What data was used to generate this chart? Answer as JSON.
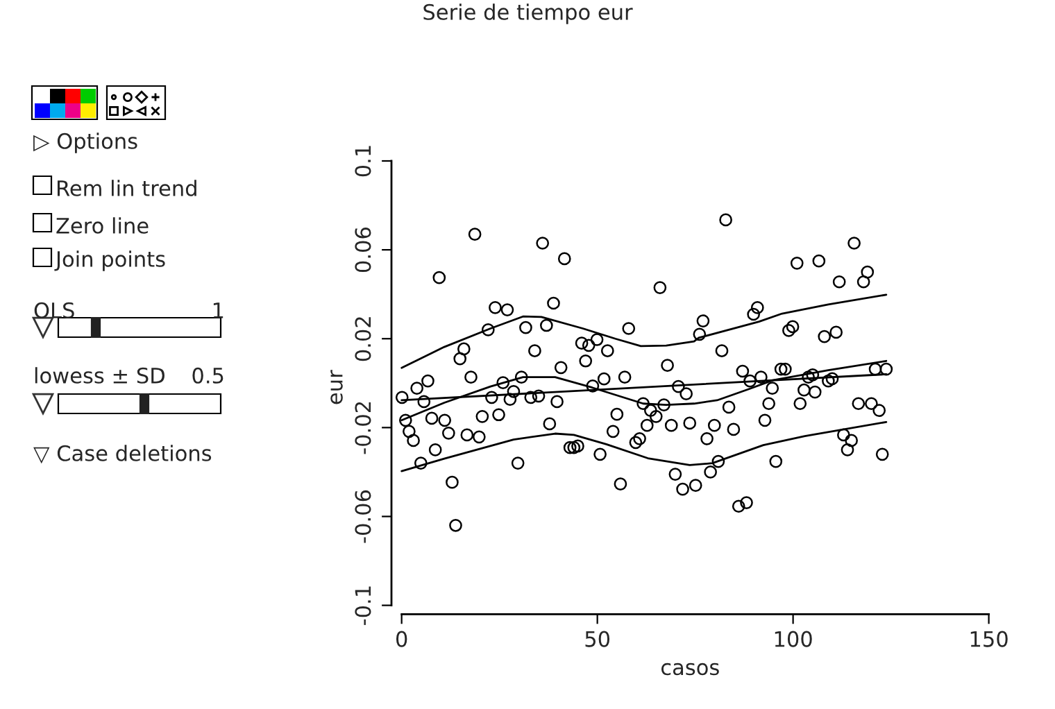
{
  "chart_data": {
    "type": "scatter",
    "title": "Serie de tiempo eur",
    "xlabel": "casos",
    "ylabel": "eur",
    "xlim": [
      -2.6,
      150
    ],
    "ylim": [
      -0.104,
      0.1
    ],
    "xticks": [
      0,
      50,
      100,
      150
    ],
    "yticks": [
      -0.1,
      -0.06,
      -0.02,
      0.02,
      0.06,
      0.1
    ],
    "grid": false,
    "annotations": [
      "▷ Options",
      "Rem lin trend",
      "Zero line",
      "Join points",
      "OLS",
      "1",
      "lowess ± SD",
      "0.5",
      "▽ Case deletions"
    ],
    "series": [
      {
        "marker": "circle",
        "color": "#000000",
        "x": [
          0.1,
          1,
          1.9,
          3,
          3.9,
          4.9,
          5.7,
          6.7,
          7.7,
          8.6,
          9.6,
          11,
          12,
          12.9,
          13.8,
          14.9,
          15.9,
          16.7,
          17.7,
          18.7,
          19.8,
          20.6,
          22.1,
          23,
          23.9,
          24.8,
          25.9,
          27,
          27.7,
          28.6,
          29.7,
          30.6,
          31.7,
          33,
          34,
          35,
          36,
          37,
          37.8,
          38.8,
          39.7,
          40.7,
          41.6,
          43,
          44,
          45,
          46,
          47,
          47.8,
          48.8,
          49.9,
          50.7,
          51.7,
          52.6,
          54,
          55,
          55.9,
          57,
          58,
          59.8,
          60.8,
          61.7,
          62.7,
          63.6,
          65,
          66,
          67,
          67.9,
          68.9,
          69.9,
          70.7,
          71.8,
          72.7,
          73.6,
          75.1,
          76.1,
          77,
          78,
          78.9,
          79.9,
          80.9,
          81.8,
          82.8,
          83.6,
          84.8,
          86.1,
          87.1,
          88.1,
          89,
          89.9,
          90.9,
          91.8,
          92.8,
          93.8,
          94.7,
          95.6,
          96.9,
          98,
          98.9,
          99.9,
          101,
          101.8,
          102.8,
          103.9,
          105,
          105.6,
          106.6,
          108,
          109,
          110,
          111,
          111.8,
          112.9,
          113.9,
          114.9,
          115.6,
          116.7,
          118,
          119,
          120,
          121,
          122,
          122.8,
          123.8
        ],
        "values": [
          -0.0064,
          -0.0167,
          -0.0217,
          -0.0258,
          -0.0023,
          -0.036,
          -0.0083,
          0.001,
          -0.0158,
          -0.03,
          0.0475,
          -0.0167,
          -0.0225,
          -0.0446,
          -0.064,
          0.011,
          0.0154,
          -0.0233,
          0.0027,
          0.067,
          -0.0242,
          -0.015,
          0.024,
          -0.0064,
          0.034,
          -0.0142,
          0.0002,
          0.033,
          -0.0073,
          -0.0038,
          -0.036,
          0.0027,
          0.025,
          -0.0064,
          0.0146,
          -0.0058,
          0.063,
          0.026,
          -0.0183,
          0.036,
          -0.0083,
          0.007,
          0.056,
          -0.029,
          -0.029,
          -0.0283,
          0.018,
          0.01,
          0.017,
          -0.0013,
          0.0196,
          -0.032,
          0.0019,
          0.0146,
          -0.0217,
          -0.014,
          -0.0454,
          0.0027,
          0.0246,
          -0.0267,
          -0.025,
          -0.0092,
          -0.019,
          -0.0123,
          -0.015,
          0.043,
          -0.0098,
          0.008,
          -0.019,
          -0.041,
          -0.0015,
          -0.0477,
          -0.0048,
          -0.018,
          -0.046,
          0.022,
          0.028,
          -0.025,
          -0.04,
          -0.019,
          -0.0352,
          0.0146,
          0.0735,
          -0.0108,
          -0.0208,
          -0.0554,
          0.0054,
          -0.0538,
          0.001,
          0.031,
          0.034,
          0.0027,
          -0.0167,
          -0.0092,
          -0.0023,
          -0.0352,
          0.0063,
          0.0063,
          0.0237,
          0.0254,
          0.054,
          -0.0092,
          -0.0031,
          0.0027,
          0.0037,
          -0.004,
          0.055,
          0.021,
          0.001,
          0.002,
          0.0229,
          0.0456,
          -0.0233,
          -0.03,
          -0.0258,
          0.063,
          -0.0092,
          0.0456,
          0.05,
          -0.0092,
          0.0063,
          -0.0123,
          -0.032,
          0.0063
        ]
      },
      {
        "type": "line",
        "marker": "none",
        "color": "#000000",
        "x": [
          0,
          123.8
        ],
        "values": [
          -0.0077,
          0.004
        ]
      },
      {
        "type": "line",
        "marker": "none",
        "color": "#000000",
        "x": [
          0,
          10.9,
          22.7,
          31,
          39.2,
          48.7,
          61.7,
          67.6,
          74.7,
          80.6,
          89,
          94.8,
          109,
          123.8
        ],
        "values": [
          -0.0167,
          -0.0088,
          -0.0015,
          0.0027,
          0.0027,
          -0.002,
          -0.0092,
          -0.0098,
          -0.0092,
          -0.0077,
          -0.0025,
          0.0013,
          0.0058,
          0.01
        ]
      },
      {
        "type": "line",
        "marker": "none",
        "color": "#000000",
        "x": [
          0,
          10.9,
          22.7,
          31,
          35.7,
          46.3,
          54.6,
          61.1,
          67.6,
          74.7,
          75.9,
          91.3,
          97.2,
          109,
          123.8
        ],
        "values": [
          0.0069,
          0.0163,
          0.0246,
          0.03,
          0.0298,
          0.0246,
          0.02,
          0.0167,
          0.0169,
          0.0188,
          0.0204,
          0.0277,
          0.0313,
          0.0354,
          0.0398
        ]
      },
      {
        "type": "line",
        "marker": "none",
        "color": "#000000",
        "x": [
          0,
          10.9,
          28.6,
          39.2,
          44,
          52.3,
          62.9,
          73.6,
          79.4,
          92.4,
          103,
          123.8
        ],
        "values": [
          -0.0396,
          -0.034,
          -0.0254,
          -0.0227,
          -0.0233,
          -0.0275,
          -0.0338,
          -0.0369,
          -0.036,
          -0.0279,
          -0.0238,
          -0.0175
        ]
      }
    ]
  }
}
